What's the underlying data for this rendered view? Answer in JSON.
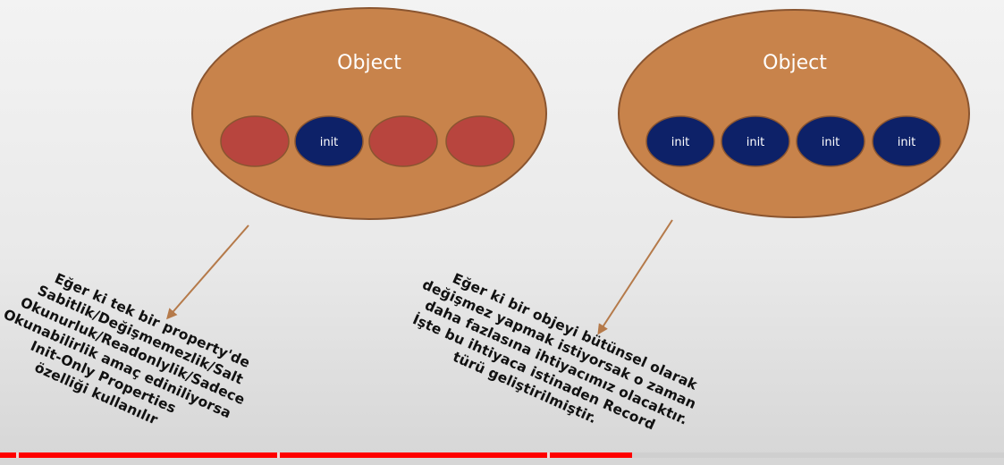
{
  "diagram": {
    "left_object": {
      "title": "Object",
      "slots": [
        {
          "kind": "plain",
          "label": ""
        },
        {
          "kind": "init",
          "label": "init"
        },
        {
          "kind": "plain",
          "label": ""
        },
        {
          "kind": "plain",
          "label": ""
        }
      ]
    },
    "right_object": {
      "title": "Object",
      "slots": [
        {
          "kind": "init",
          "label": "init"
        },
        {
          "kind": "init",
          "label": "init"
        },
        {
          "kind": "init",
          "label": "init"
        },
        {
          "kind": "init",
          "label": "init"
        }
      ]
    },
    "left_note_lines": [
      "Eğer ki tek bir property'de",
      "Sabitlik/Değişmemezlik/Salt",
      "Okunurluk/Readonlylik/Sadece",
      "Okunabilirlik amaç ediniliyorsa",
      "Init-Only Properties",
      "özelliği kullanılır"
    ],
    "right_note_lines": [
      "Eğer ki bir objeyi bütünsel olarak",
      "değişmez yapmak istiyorsak o zaman",
      "daha fazlasına ihtiyacımız olacaktır.",
      "İşte bu ihtiyaca istinaden Record",
      "türü geliştirilmiştir."
    ],
    "colors": {
      "object_fill": "#c8834b",
      "object_stroke": "#8a5530",
      "plain_slot": "#b8453e",
      "init_slot": "#0d2168",
      "arrow": "#b57a4a"
    }
  },
  "player": {
    "progress_fraction": 0.63
  }
}
